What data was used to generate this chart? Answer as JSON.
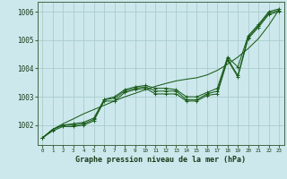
{
  "title": "Graphe pression niveau de la mer (hPa)",
  "background_color": "#cce8ec",
  "grid_color": "#aacccc",
  "line_color": "#1a5c1a",
  "x_ticks": [
    0,
    1,
    2,
    3,
    4,
    5,
    6,
    7,
    8,
    9,
    10,
    11,
    12,
    13,
    14,
    15,
    16,
    17,
    18,
    19,
    20,
    21,
    22,
    23
  ],
  "y_ticks": [
    1002,
    1003,
    1004,
    1005,
    1006
  ],
  "ylim": [
    1001.3,
    1006.35
  ],
  "xlim": [
    -0.5,
    23.5
  ],
  "hours": [
    0,
    1,
    2,
    3,
    4,
    5,
    6,
    7,
    8,
    9,
    10,
    11,
    12,
    13,
    14,
    15,
    16,
    17,
    18,
    19,
    20,
    21,
    22,
    23
  ],
  "line_main": [
    1001.55,
    1001.85,
    1002.0,
    1002.0,
    1002.05,
    1002.2,
    1002.9,
    1002.95,
    1003.2,
    1003.3,
    1003.35,
    1003.2,
    1003.2,
    1003.2,
    1002.9,
    1002.9,
    1003.1,
    1003.2,
    1004.35,
    1003.75,
    1005.1,
    1005.5,
    1005.95,
    1006.05
  ],
  "line_high": [
    1001.55,
    1001.85,
    1002.0,
    1002.05,
    1002.1,
    1002.25,
    1002.9,
    1003.0,
    1003.25,
    1003.35,
    1003.4,
    1003.3,
    1003.3,
    1003.25,
    1003.0,
    1003.0,
    1003.15,
    1003.3,
    1004.4,
    1004.05,
    1005.15,
    1005.55,
    1006.0,
    1006.1
  ],
  "line_low": [
    1001.55,
    1001.8,
    1001.95,
    1001.95,
    1002.0,
    1002.15,
    1002.85,
    1002.85,
    1003.15,
    1003.25,
    1003.3,
    1003.1,
    1003.1,
    1003.1,
    1002.85,
    1002.85,
    1003.05,
    1003.1,
    1004.3,
    1003.7,
    1005.05,
    1005.45,
    1005.9,
    1006.0
  ],
  "line_trend": [
    1001.55,
    1001.85,
    1002.05,
    1002.22,
    1002.4,
    1002.55,
    1002.7,
    1002.85,
    1003.0,
    1003.12,
    1003.25,
    1003.37,
    1003.47,
    1003.56,
    1003.62,
    1003.67,
    1003.77,
    1003.93,
    1004.15,
    1004.4,
    1004.7,
    1005.05,
    1005.52,
    1006.07
  ]
}
